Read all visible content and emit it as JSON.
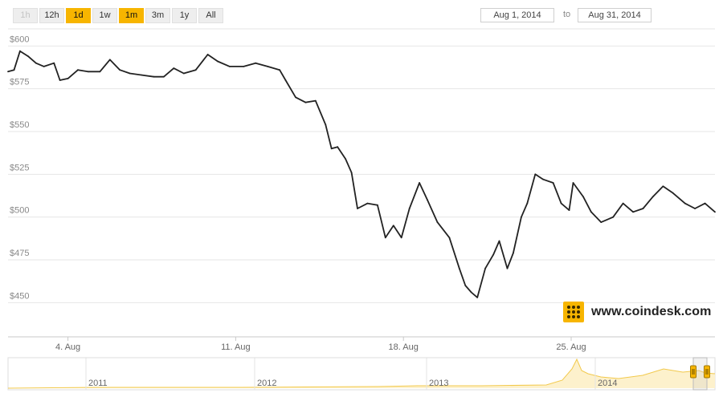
{
  "range_selector": {
    "buttons": [
      {
        "label": "1h",
        "state": "disabled"
      },
      {
        "label": "12h",
        "state": "normal"
      },
      {
        "label": "1d",
        "state": "active"
      },
      {
        "label": "1w",
        "state": "normal"
      },
      {
        "label": "1m",
        "state": "active"
      },
      {
        "label": "3m",
        "state": "normal"
      },
      {
        "label": "1y",
        "state": "normal"
      },
      {
        "label": "All",
        "state": "normal"
      }
    ]
  },
  "date_range": {
    "from": "Aug 1, 2014",
    "to_label": "to",
    "to": "Aug 31, 2014"
  },
  "brand": {
    "text": "www.coindesk.com"
  },
  "colors": {
    "accent": "#f7b500",
    "line": "#222222",
    "grid": "#e6e6e6",
    "navigator_fill": "#fdf1cc",
    "navigator_line": "#f2c94c"
  },
  "chart_data": {
    "type": "line",
    "title": "",
    "xlabel": "",
    "ylabel": "",
    "ylim": [
      430,
      610
    ],
    "yticks": [
      450,
      475,
      500,
      525,
      550,
      575,
      600
    ],
    "ytick_labels": [
      "$450",
      "$475",
      "$500",
      "$525",
      "$550",
      "$575",
      "$600"
    ],
    "xlim": [
      "2014-08-01T12:00",
      "2014-08-31T00:00"
    ],
    "xticks": [
      "2014-08-04",
      "2014-08-11",
      "2014-08-18",
      "2014-08-25"
    ],
    "xtick_labels": [
      "4. Aug",
      "11. Aug",
      "18. Aug",
      "25. Aug"
    ],
    "grid": true,
    "series": [
      {
        "values": [
          [
            "2014-08-01T12:00",
            585
          ],
          [
            "2014-08-01T18:00",
            586
          ],
          [
            "2014-08-02T00:00",
            597
          ],
          [
            "2014-08-02T08:00",
            594
          ],
          [
            "2014-08-02T16:00",
            590
          ],
          [
            "2014-08-03T00:00",
            588
          ],
          [
            "2014-08-03T10:00",
            590
          ],
          [
            "2014-08-03T16:00",
            580
          ],
          [
            "2014-08-04T00:00",
            581
          ],
          [
            "2014-08-04T10:00",
            586
          ],
          [
            "2014-08-04T20:00",
            585
          ],
          [
            "2014-08-05T08:00",
            585
          ],
          [
            "2014-08-05T18:00",
            592
          ],
          [
            "2014-08-06T04:00",
            586
          ],
          [
            "2014-08-06T14:00",
            584
          ],
          [
            "2014-08-07T02:00",
            583
          ],
          [
            "2014-08-07T14:00",
            582
          ],
          [
            "2014-08-08T00:00",
            582
          ],
          [
            "2014-08-08T10:00",
            587
          ],
          [
            "2014-08-08T20:00",
            584
          ],
          [
            "2014-08-09T08:00",
            586
          ],
          [
            "2014-08-09T20:00",
            595
          ],
          [
            "2014-08-10T06:00",
            591
          ],
          [
            "2014-08-10T18:00",
            588
          ],
          [
            "2014-08-11T08:00",
            588
          ],
          [
            "2014-08-11T20:00",
            590
          ],
          [
            "2014-08-12T08:00",
            588
          ],
          [
            "2014-08-12T20:00",
            586
          ],
          [
            "2014-08-13T02:00",
            580
          ],
          [
            "2014-08-13T12:00",
            570
          ],
          [
            "2014-08-13T22:00",
            567
          ],
          [
            "2014-08-14T08:00",
            568
          ],
          [
            "2014-08-14T18:00",
            554
          ],
          [
            "2014-08-15T00:00",
            540
          ],
          [
            "2014-08-15T06:00",
            541
          ],
          [
            "2014-08-15T14:00",
            534
          ],
          [
            "2014-08-15T20:00",
            526
          ],
          [
            "2014-08-16T02:00",
            505
          ],
          [
            "2014-08-16T12:00",
            508
          ],
          [
            "2014-08-16T22:00",
            507
          ],
          [
            "2014-08-17T06:00",
            488
          ],
          [
            "2014-08-17T14:00",
            495
          ],
          [
            "2014-08-17T22:00",
            488
          ],
          [
            "2014-08-18T06:00",
            505
          ],
          [
            "2014-08-18T16:00",
            520
          ],
          [
            "2014-08-19T00:00",
            510
          ],
          [
            "2014-08-19T10:00",
            497
          ],
          [
            "2014-08-19T22:00",
            488
          ],
          [
            "2014-08-20T08:00",
            470
          ],
          [
            "2014-08-20T14:00",
            460
          ],
          [
            "2014-08-20T20:00",
            456
          ],
          [
            "2014-08-21T02:00",
            453
          ],
          [
            "2014-08-21T10:00",
            470
          ],
          [
            "2014-08-21T18:00",
            478
          ],
          [
            "2014-08-22T00:00",
            486
          ],
          [
            "2014-08-22T08:00",
            470
          ],
          [
            "2014-08-22T14:00",
            479
          ],
          [
            "2014-08-22T22:00",
            500
          ],
          [
            "2014-08-23T04:00",
            508
          ],
          [
            "2014-08-23T12:00",
            525
          ],
          [
            "2014-08-23T20:00",
            522
          ],
          [
            "2014-08-24T06:00",
            520
          ],
          [
            "2014-08-24T14:00",
            508
          ],
          [
            "2014-08-24T22:00",
            504
          ],
          [
            "2014-08-25T02:00",
            520
          ],
          [
            "2014-08-25T12:00",
            512
          ],
          [
            "2014-08-25T20:00",
            503
          ],
          [
            "2014-08-26T06:00",
            497
          ],
          [
            "2014-08-26T18:00",
            500
          ],
          [
            "2014-08-27T04:00",
            508
          ],
          [
            "2014-08-27T14:00",
            503
          ],
          [
            "2014-08-28T00:00",
            505
          ],
          [
            "2014-08-28T10:00",
            512
          ],
          [
            "2014-08-28T20:00",
            518
          ],
          [
            "2014-08-29T06:00",
            514
          ],
          [
            "2014-08-29T18:00",
            508
          ],
          [
            "2014-08-30T04:00",
            505
          ],
          [
            "2014-08-30T14:00",
            508
          ],
          [
            "2014-08-31T00:00",
            503
          ]
        ]
      }
    ],
    "navigator": {
      "labels": [
        "2011",
        "2012",
        "2013",
        "2014"
      ]
    }
  }
}
